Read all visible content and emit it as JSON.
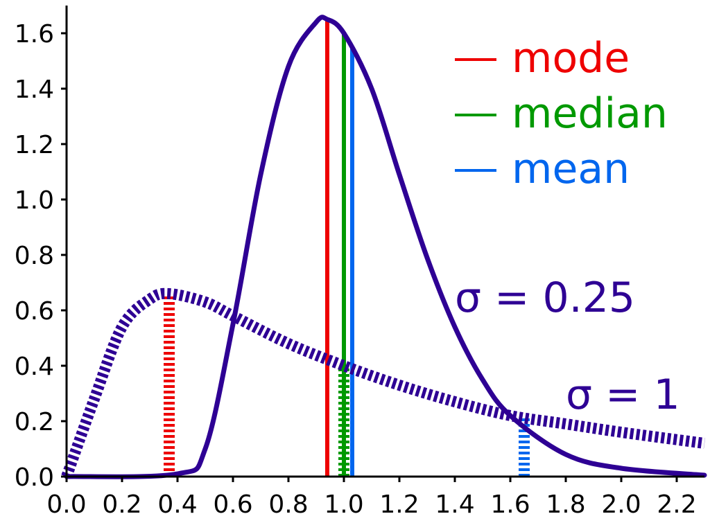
{
  "chart_data": {
    "type": "line",
    "title": "",
    "xlabel": "",
    "ylabel": "",
    "xlim": [
      0,
      2.3
    ],
    "ylim": [
      0,
      1.7
    ],
    "grid": false,
    "x_ticks": [
      "0.0",
      "0.2",
      "0.4",
      "0.6",
      "0.8",
      "1.0",
      "1.2",
      "1.4",
      "1.6",
      "1.8",
      "2.0",
      "2.2"
    ],
    "y_ticks": [
      "0.0",
      "0.2",
      "0.4",
      "0.6",
      "0.8",
      "1.0",
      "1.2",
      "1.4",
      "1.6"
    ],
    "colors": {
      "curve": "#2e0094",
      "mode": "#ee0000",
      "median": "#009900",
      "mean": "#0066ee"
    },
    "legend": {
      "placement": "top-right",
      "entries": [
        {
          "key": "mode",
          "label": "mode"
        },
        {
          "key": "median",
          "label": "median"
        },
        {
          "key": "mean",
          "label": "mean"
        }
      ]
    },
    "series": [
      {
        "label": "σ = 0.25",
        "sigma": 0.25,
        "style": "solid",
        "x": [
          0.0,
          0.4,
          0.5,
          0.6,
          0.7,
          0.8,
          0.9,
          0.94,
          1.0,
          1.1,
          1.2,
          1.3,
          1.4,
          1.5,
          1.6,
          1.8,
          2.0,
          2.3
        ],
        "y": [
          0.0,
          0.01,
          0.1,
          0.55,
          1.09,
          1.48,
          1.64,
          1.65,
          1.6,
          1.4,
          1.09,
          0.79,
          0.54,
          0.35,
          0.22,
          0.08,
          0.03,
          0.005
        ],
        "mode": {
          "x": 0.94,
          "y": 1.65
        },
        "median": {
          "x": 1.0,
          "y": 1.6
        },
        "mean": {
          "x": 1.03,
          "y": 1.55
        }
      },
      {
        "label": "σ = 1",
        "sigma": 1,
        "style": "dashed",
        "x": [
          0.0,
          0.1,
          0.2,
          0.3,
          0.37,
          0.5,
          0.6,
          0.8,
          1.0,
          1.2,
          1.4,
          1.6,
          1.8,
          2.0,
          2.3
        ],
        "y": [
          0.0,
          0.28,
          0.54,
          0.64,
          0.66,
          0.63,
          0.58,
          0.48,
          0.4,
          0.33,
          0.27,
          0.22,
          0.19,
          0.16,
          0.12
        ],
        "mode": {
          "x": 0.37,
          "y": 0.66
        },
        "median": {
          "x": 1.0,
          "y": 0.4
        },
        "mean": {
          "x": 1.65,
          "y": 0.21
        }
      }
    ]
  }
}
